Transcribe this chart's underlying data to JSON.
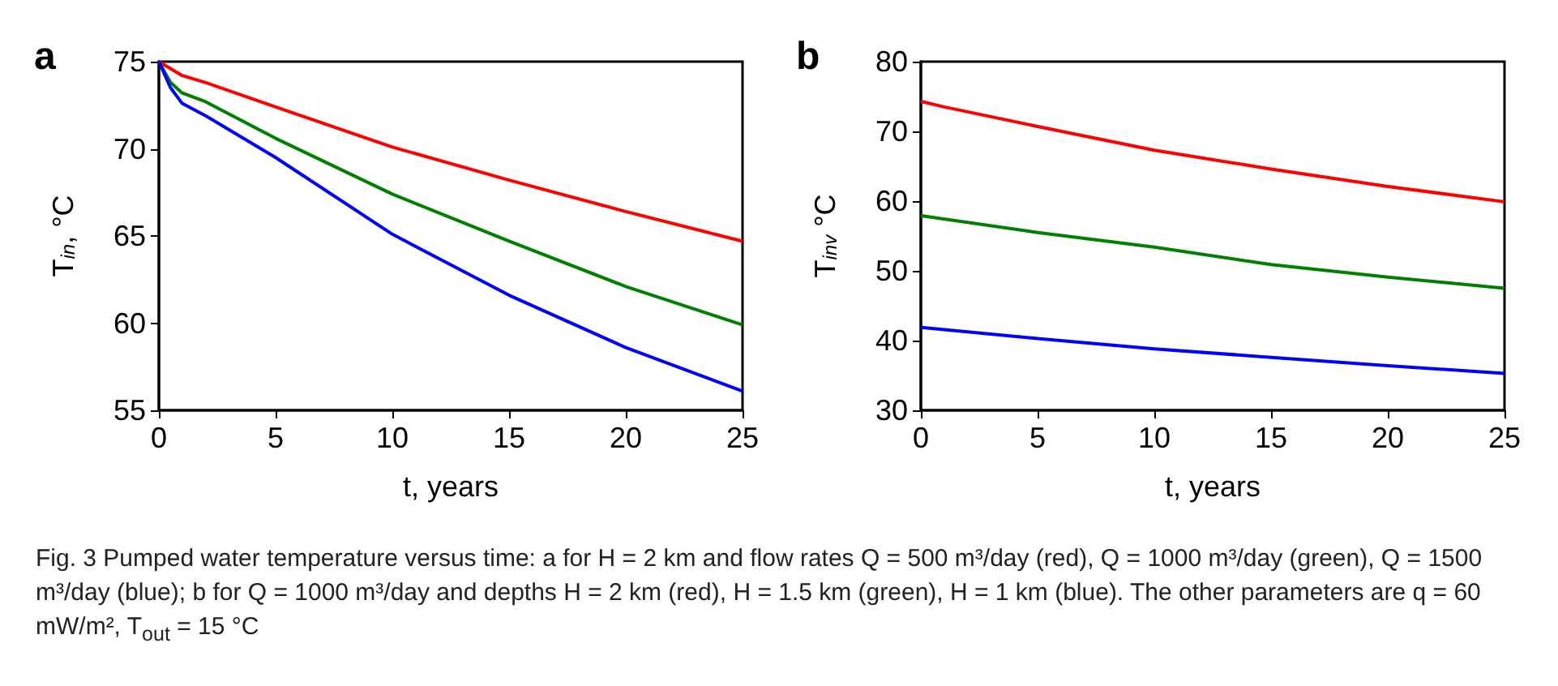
{
  "chart_data": [
    {
      "type": "line",
      "title": "a",
      "xlabel": "t, years",
      "ylabel": "T$_{in}$, °C",
      "xlim": [
        0,
        25
      ],
      "xticks": [
        0,
        5,
        10,
        15,
        20,
        25
      ],
      "ylim": [
        55,
        75
      ],
      "yticks": [
        55,
        60,
        65,
        70,
        75
      ],
      "annotations": [
        "Fig. 3  Pumped water temperature versus time: a for H = 2 km and flow rates Q = 500 m³/day (red), Q = 1000 m³/day (green), Q = 1500 m³/day (blue); b for Q = 1000 m³/day and depths H = 2 km (red), H = 1.5 km (green), H = 1 km (blue). The other parameters are q = 60 mW/m², T$_{out}$ = 15 °C"
      ],
      "series": [
        {
          "color": "#ff0000",
          "x": [
            0,
            1,
            2,
            5,
            10,
            15,
            20,
            25
          ],
          "values": [
            75,
            74.2,
            73.8,
            72.4,
            70.1,
            68.2,
            66.4,
            64.7
          ]
        },
        {
          "color": "#008000",
          "x": [
            0,
            0.5,
            1,
            2,
            5,
            10,
            15,
            20,
            25
          ],
          "values": [
            75,
            73.8,
            73.2,
            72.7,
            70.6,
            67.4,
            64.7,
            62.1,
            59.9
          ]
        },
        {
          "color": "#0000ff",
          "x": [
            0,
            0.5,
            1,
            2,
            5,
            10,
            15,
            20,
            25
          ],
          "values": [
            75,
            73.5,
            72.6,
            71.9,
            69.5,
            65.1,
            61.6,
            58.6,
            56.1
          ]
        }
      ]
    },
    {
      "type": "line",
      "title": "b",
      "xlabel": "t, years",
      "ylabel": "T$_{inv}$ °C",
      "xlim": [
        0,
        25
      ],
      "xticks": [
        0,
        5,
        10,
        15,
        20,
        25
      ],
      "ylim": [
        30,
        80
      ],
      "yticks": [
        30,
        40,
        50,
        60,
        70,
        80
      ],
      "series": [
        {
          "color": "#ff0000",
          "x": [
            0,
            1,
            5,
            10,
            15,
            20,
            25
          ],
          "values": [
            74.3,
            73.5,
            70.7,
            67.3,
            64.6,
            62.1,
            59.9
          ]
        },
        {
          "color": "#008000",
          "x": [
            0,
            5,
            10,
            15,
            20,
            25
          ],
          "values": [
            57.9,
            55.5,
            53.4,
            50.9,
            49.1,
            47.5
          ]
        },
        {
          "color": "#0000ff",
          "x": [
            0,
            5,
            10,
            15,
            20,
            25
          ],
          "values": [
            41.9,
            40.3,
            38.8,
            37.6,
            36.4,
            35.3
          ]
        }
      ]
    }
  ]
}
